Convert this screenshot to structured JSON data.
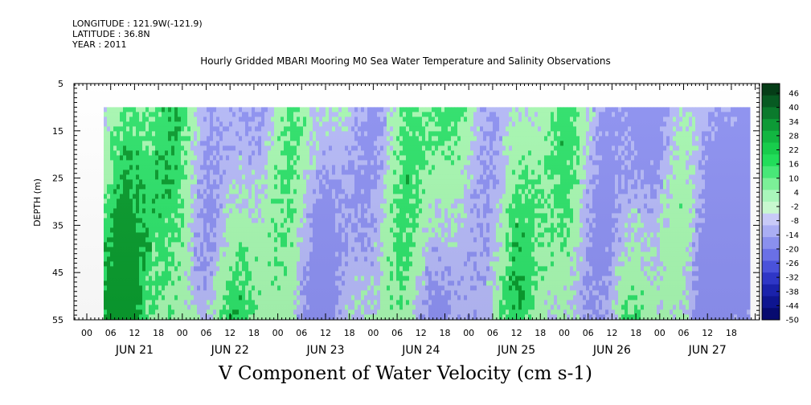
{
  "meta": {
    "longitude": "LONGITUDE : 121.9W(-121.9)",
    "latitude": "LATITUDE : 36.8N",
    "year": "YEAR : 2011"
  },
  "title": "Hourly Gridded MBARI Mooring M0 Sea Water Temperature and Salinity Observations",
  "main_title": "V Component of Water Velocity (cm s-1)",
  "colors": {
    "green_dark": "#0a9a2e",
    "green_mid": "#2ee06a",
    "green_light": "#a6f6b0",
    "blue_light": "#b4b8f6",
    "blue_mid": "#8c90f0"
  },
  "chart_data": {
    "type": "heatmap",
    "ylabel": "DEPTH (m)",
    "ylim": [
      5,
      55
    ],
    "y_inverted": true,
    "y_major_ticks": [
      5,
      15,
      25,
      35,
      45,
      55
    ],
    "x_hour_labels": [
      "00",
      "06",
      "12",
      "18",
      "00",
      "06",
      "12",
      "18",
      "00",
      "06",
      "12",
      "18",
      "00",
      "06",
      "12",
      "18",
      "00",
      "06",
      "12",
      "18",
      "00",
      "06",
      "12",
      "18",
      "00",
      "06",
      "12",
      "18"
    ],
    "x_date_labels": [
      "JUN 21",
      "JUN 22",
      "JUN 23",
      "JUN 24",
      "JUN 25",
      "JUN 26",
      "JUN 27"
    ],
    "data_depth_range": [
      10,
      55
    ],
    "colorbar": {
      "labels": [
        "46",
        "40",
        "34",
        "28",
        "22",
        "16",
        "10",
        "4",
        "-2",
        "-8",
        "-14",
        "-20",
        "-26",
        "-32",
        "-38",
        "-44",
        "-50"
      ],
      "colors": [
        "#053d17",
        "#075a22",
        "#0a7a2c",
        "#0d9a36",
        "#12b641",
        "#18cc4c",
        "#22dd5a",
        "#48e878",
        "#7cf098",
        "#a9f6bb",
        "#c8f8cf",
        "#c8caf8",
        "#aaaef4",
        "#8a90ee",
        "#6a70e6",
        "#4a52da",
        "#2e36c6",
        "#1a22ab",
        "#0e1590",
        "#070b70"
      ]
    }
  }
}
